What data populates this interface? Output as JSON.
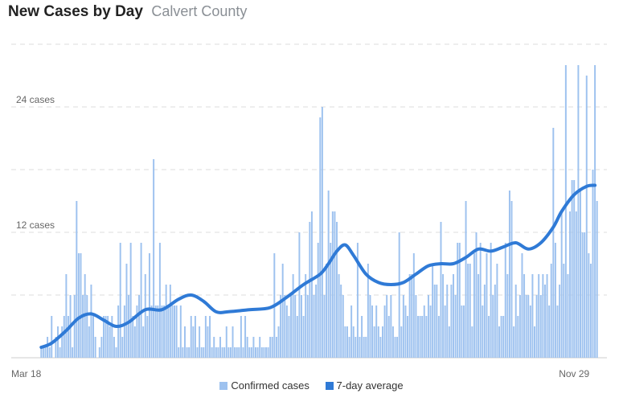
{
  "header": {
    "title": "New Cases by Day",
    "subtitle": "Calvert County"
  },
  "colors": {
    "bar": "#9ec2ef",
    "line": "#2f7ad6",
    "grid": "#dddddd",
    "tick_text": "#666666"
  },
  "chart_data": {
    "type": "bar",
    "ylim": [
      0,
      30
    ],
    "yticks": [
      {
        "value": 24,
        "label": "24 cases"
      },
      {
        "value": 12,
        "label": "12 cases"
      }
    ],
    "gridlines": [
      6,
      12,
      18,
      24,
      30
    ],
    "xticks": [
      {
        "index": 0,
        "label": "Mar 18"
      },
      {
        "index": 256,
        "label": "Nov 29"
      }
    ],
    "series": [
      {
        "name": "Confirmed cases",
        "type": "bar",
        "values": [
          1,
          1,
          1,
          2,
          1,
          4,
          0,
          2,
          3,
          1,
          3,
          4,
          8,
          4,
          6,
          1,
          6,
          15,
          10,
          10,
          6,
          8,
          6,
          3,
          7,
          4,
          2,
          0,
          1,
          2,
          4,
          4,
          4,
          3,
          4,
          2,
          1,
          5,
          11,
          2,
          5,
          9,
          6,
          11,
          4,
          3,
          5,
          6,
          11,
          3,
          8,
          4,
          10,
          5,
          19,
          5,
          5,
          11,
          5,
          5,
          7,
          5,
          7,
          5,
          5,
          5,
          1,
          5,
          1,
          3,
          1,
          1,
          4,
          3,
          4,
          1,
          3,
          1,
          1,
          4,
          3,
          4,
          1,
          2,
          1,
          1,
          2,
          1,
          1,
          3,
          1,
          1,
          3,
          1,
          1,
          1,
          4,
          1,
          4,
          2,
          1,
          1,
          2,
          1,
          1,
          2,
          1,
          1,
          1,
          1,
          2,
          2,
          10,
          2,
          3,
          6,
          9,
          6,
          5,
          4,
          6,
          8,
          6,
          4,
          12,
          6,
          4,
          8,
          6,
          13,
          14,
          6,
          7,
          11,
          23,
          24,
          6,
          9,
          16,
          11,
          14,
          14,
          13,
          8,
          7,
          6,
          3,
          3,
          2,
          5,
          3,
          2,
          11,
          2,
          4,
          2,
          2,
          9,
          6,
          5,
          3,
          5,
          3,
          2,
          3,
          5,
          6,
          4,
          6,
          3,
          2,
          2,
          12,
          3,
          6,
          5,
          4,
          8,
          8,
          10,
          6,
          4,
          4,
          4,
          5,
          4,
          6,
          5,
          9,
          7,
          7,
          4,
          13,
          8,
          5,
          7,
          3,
          7,
          8,
          6,
          11,
          11,
          5,
          5,
          15,
          9,
          9,
          3,
          10,
          12,
          8,
          11,
          5,
          7,
          10,
          4,
          11,
          6,
          7,
          9,
          3,
          4,
          4,
          11,
          8,
          16,
          15,
          3,
          7,
          4,
          6,
          10,
          8,
          6,
          6,
          5,
          8,
          3,
          6,
          8,
          6,
          8,
          7,
          8,
          5,
          9,
          22,
          11,
          5,
          7,
          14,
          9,
          28,
          8,
          14,
          17,
          17,
          14,
          28,
          16,
          12,
          12,
          27,
          10,
          9,
          18,
          28,
          15
        ]
      },
      {
        "name": "7-day average",
        "type": "line",
        "points": [
          [
            0,
            1
          ],
          [
            5,
            1.4
          ],
          [
            12,
            2.6
          ],
          [
            18,
            3.8
          ],
          [
            24,
            4.2
          ],
          [
            30,
            3.6
          ],
          [
            36,
            3
          ],
          [
            42,
            3.4
          ],
          [
            50,
            4.6
          ],
          [
            58,
            4.6
          ],
          [
            66,
            5.6
          ],
          [
            72,
            6
          ],
          [
            78,
            5.4
          ],
          [
            84,
            4.4
          ],
          [
            90,
            4.4
          ],
          [
            100,
            4.6
          ],
          [
            110,
            4.8
          ],
          [
            118,
            5.8
          ],
          [
            126,
            7
          ],
          [
            134,
            8
          ],
          [
            138,
            9
          ],
          [
            142,
            10.2
          ],
          [
            146,
            10.8
          ],
          [
            150,
            9.8
          ],
          [
            156,
            8
          ],
          [
            162,
            7.2
          ],
          [
            168,
            7
          ],
          [
            174,
            7.2
          ],
          [
            180,
            8
          ],
          [
            186,
            8.8
          ],
          [
            192,
            9
          ],
          [
            198,
            9
          ],
          [
            204,
            9.6
          ],
          [
            210,
            10.4
          ],
          [
            216,
            10.2
          ],
          [
            222,
            10.6
          ],
          [
            228,
            11
          ],
          [
            234,
            10.4
          ],
          [
            240,
            11
          ],
          [
            246,
            12.5
          ],
          [
            250,
            14
          ],
          [
            256,
            15.6
          ],
          [
            262,
            16.4
          ],
          [
            266,
            16.5
          ]
        ]
      }
    ]
  }
}
